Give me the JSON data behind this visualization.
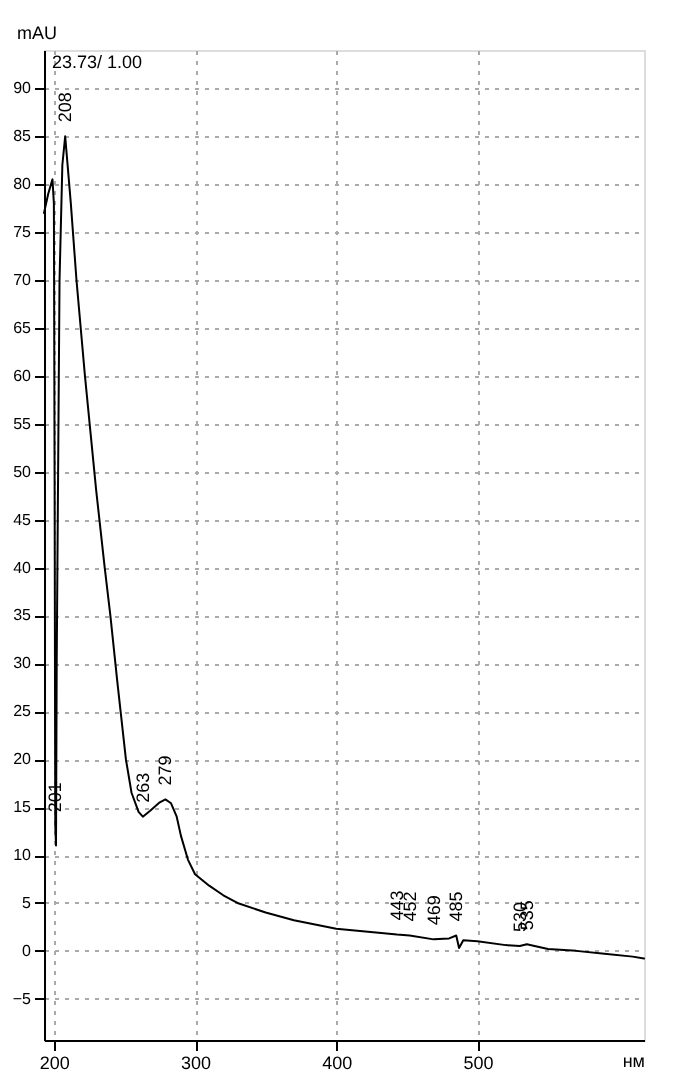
{
  "chart_data": {
    "type": "line",
    "xlabel": "нм",
    "ylabel": "mAU",
    "x": [
      193,
      196,
      199,
      200,
      200.5,
      201,
      201.5,
      202,
      203,
      204,
      206,
      208,
      212,
      216,
      222,
      230,
      236,
      240,
      245,
      251,
      255,
      260,
      263,
      268,
      275,
      279,
      283,
      287,
      290,
      295,
      300,
      310,
      320,
      330,
      350,
      370,
      400,
      430,
      443,
      452,
      469,
      480,
      485,
      487,
      490,
      500,
      520,
      530,
      535,
      550,
      570,
      590,
      610,
      618
    ],
    "series": [
      {
        "color": "#000000",
        "values": [
          77,
          79,
          80.5,
          78,
          50,
          13,
          11,
          30,
          50,
          70,
          82,
          85,
          78,
          70,
          60,
          48,
          40,
          35,
          28,
          20,
          16.5,
          14.5,
          14,
          14.6,
          15.5,
          15.8,
          15.4,
          14,
          12,
          9.5,
          8,
          6.8,
          5.8,
          5,
          4,
          3.2,
          2.3,
          1.9,
          1.7,
          1.6,
          1.2,
          1.3,
          1.6,
          0.3,
          1.1,
          1.0,
          0.6,
          0.5,
          0.7,
          0.2,
          0,
          -0.3,
          -0.6,
          -0.8
        ]
      }
    ],
    "xlim": [
      193,
      618
    ],
    "ylim": [
      -9.3,
      94
    ],
    "xticks": [
      200,
      300,
      400,
      500
    ],
    "yticks": [
      -5,
      0,
      5,
      10,
      15,
      20,
      25,
      30,
      35,
      40,
      45,
      50,
      55,
      60,
      65,
      70,
      75,
      80,
      85,
      90
    ],
    "grid": true,
    "line_style": "solid",
    "marker": "none",
    "annotations": [
      "23.73/ 1.00",
      {
        "text": "201",
        "x": 201,
        "y": 13
      },
      {
        "text": "208",
        "x": 208,
        "y": 85
      },
      {
        "text": "263",
        "x": 263,
        "y": 14
      },
      {
        "text": "279",
        "x": 279,
        "y": 15.8
      },
      {
        "text": "443",
        "x": 443,
        "y": 1.7
      },
      {
        "text": "452",
        "x": 452,
        "y": 1.6
      },
      {
        "text": "469",
        "x": 469,
        "y": 1.2
      },
      {
        "text": "485",
        "x": 485,
        "y": 1.6
      },
      {
        "text": "530",
        "x": 530,
        "y": 0.5
      },
      {
        "text": "535",
        "x": 535,
        "y": 0.7
      }
    ]
  }
}
